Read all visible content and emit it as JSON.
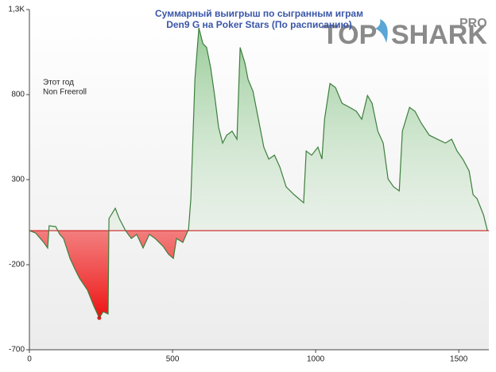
{
  "chart_data": {
    "type": "line",
    "title": "Суммарный выигрыш по сыгранным играм",
    "subtitle": "Den9 G на Poker Stars (По расписанию)",
    "annotations": [
      "Этот год",
      "Non Freeroll"
    ],
    "logo": {
      "parts": [
        "TOP",
        "SHARK"
      ],
      "badge": "PRO"
    },
    "color": "#3d7f3d",
    "zero_line_color": "#cc2222",
    "xlim": [
      0,
      1605
    ],
    "ylim": [
      -700,
      1300
    ],
    "xticks": [
      0,
      500,
      1000,
      1500
    ],
    "yticks": [
      -700,
      -200,
      300,
      800,
      {
        "value": 1300,
        "label": "1,3K"
      }
    ],
    "x": [
      0,
      22,
      50,
      64,
      69,
      92,
      106,
      119,
      142,
      161,
      175,
      203,
      225,
      244,
      258,
      275,
      278,
      300,
      314,
      336,
      356,
      375,
      397,
      419,
      439,
      467,
      486,
      503,
      514,
      536,
      556,
      564,
      578,
      592,
      606,
      619,
      633,
      647,
      661,
      675,
      689,
      708,
      725,
      736,
      753,
      764,
      781,
      800,
      819,
      836,
      856,
      875,
      897,
      925,
      958,
      967,
      986,
      1008,
      1022,
      1031,
      1050,
      1069,
      1092,
      1119,
      1142,
      1161,
      1181,
      1197,
      1217,
      1236,
      1253,
      1272,
      1292,
      1303,
      1328,
      1347,
      1369,
      1397,
      1425,
      1453,
      1475,
      1494,
      1514,
      1536,
      1550,
      1564,
      1586,
      1600
    ],
    "y": [
      0,
      -14,
      -69,
      -102,
      29,
      24,
      -22,
      -46,
      -163,
      -233,
      -280,
      -350,
      -443,
      -513,
      -476,
      -490,
      71,
      132,
      71,
      0,
      -46,
      -22,
      -102,
      -22,
      -46,
      -92,
      -139,
      -163,
      -46,
      -69,
      9,
      188,
      889,
      1193,
      1100,
      1077,
      959,
      795,
      608,
      515,
      561,
      585,
      538,
      1077,
      983,
      889,
      819,
      655,
      491,
      421,
      444,
      374,
      258,
      211,
      164,
      468,
      444,
      491,
      421,
      655,
      865,
      842,
      749,
      725,
      702,
      655,
      795,
      749,
      585,
      515,
      304,
      258,
      234,
      585,
      725,
      702,
      632,
      561,
      538,
      515,
      538,
      468,
      421,
      351,
      211,
      188,
      94,
      0
    ]
  }
}
